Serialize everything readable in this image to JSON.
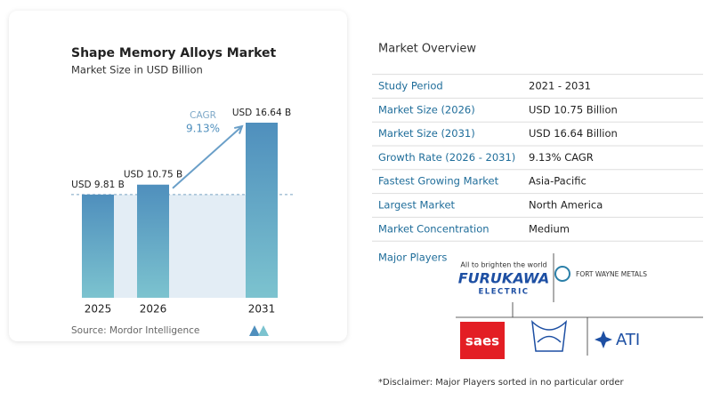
{
  "chart_data": {
    "type": "bar",
    "title": "Shape Memory Alloys Market",
    "subtitle": "Market Size in USD Billion",
    "categories": [
      "2025",
      "2026",
      "2031"
    ],
    "values": [
      9.81,
      10.75,
      16.64
    ],
    "value_labels": [
      "USD 9.81 B",
      "USD 10.75 B",
      "USD 16.64 B"
    ],
    "color": "#4f8fbd",
    "annotation": {
      "label": "CAGR",
      "value": "9.13%"
    },
    "source": "Source: Mordor Intelligence"
  },
  "market_overview": {
    "title": "Market Overview",
    "rows": [
      [
        "Study Period",
        "2021 - 2031"
      ],
      [
        "Market Size (2026)",
        "USD 10.75 Billion"
      ],
      [
        "Market Size (2031)",
        "USD 16.64 Billion"
      ],
      [
        "Growth Rate (2026 - 2031)",
        "9.13% CAGR"
      ],
      [
        "Fastest Growing Market",
        "Asia-Pacific"
      ],
      [
        "Largest Market",
        "North America"
      ],
      [
        "Market Concentration",
        "Medium"
      ]
    ]
  },
  "major_players": {
    "label": "Major Players",
    "logos": {
      "furukawa_tagline": "All to brighten the world",
      "furukawa": "FURUKAWA",
      "furukawa_sub": "ELECTRIC",
      "fort_wayne": "FORT WAYNE METALS",
      "saes": "saes",
      "ati": "ATI"
    }
  },
  "disclaimer": "*Disclaimer: Major Players sorted in no particular order"
}
